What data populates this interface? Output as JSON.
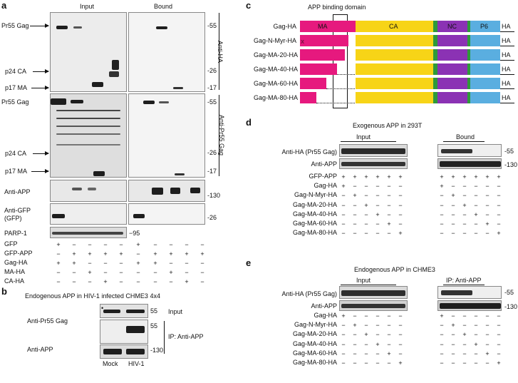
{
  "panels": {
    "a": "a",
    "b": "b",
    "c": "c",
    "d": "d",
    "e": "e"
  },
  "a": {
    "input": "Input",
    "bound": "Bound",
    "side_ha": "Anti-HA",
    "side_pr55": "Anti-Pr55 Gag",
    "arrows": [
      "Pr55 Gag",
      "p24 CA",
      "p17 MA",
      "Pr55 Gag",
      "p24 CA",
      "p17 MA"
    ],
    "mw": [
      "-55",
      "-26",
      "-17",
      "-55",
      "-26",
      "-17",
      "-130",
      "-26",
      "−95"
    ],
    "blot_labels": [
      "Anti-APP",
      "Anti-GFP\n(GFP)",
      "PARP-1"
    ],
    "anti_gfp_1": "Anti-GFP",
    "anti_gfp_2": "(GFP)",
    "rows": [
      {
        "label": "GFP",
        "signs": [
          "+",
          "−",
          "−",
          "−",
          "−",
          "+",
          "−",
          "−",
          "−",
          "−"
        ]
      },
      {
        "label": "GFP-APP",
        "signs": [
          "−",
          "+",
          "+",
          "+",
          "+",
          "−",
          "+",
          "+",
          "+",
          "+"
        ]
      },
      {
        "label": "Gag-HA",
        "signs": [
          "+",
          "+",
          "−",
          "−",
          "−",
          "+",
          "+",
          "−",
          "−",
          "−"
        ]
      },
      {
        "label": "MA-HA",
        "signs": [
          "−",
          "−",
          "+",
          "−",
          "−",
          "−",
          "−",
          "+",
          "−",
          "−"
        ]
      },
      {
        "label": "CA-HA",
        "signs": [
          "−",
          "−",
          "−",
          "+",
          "−",
          "−",
          "−",
          "−",
          "+",
          "−"
        ]
      }
    ]
  },
  "b": {
    "title": "Endogenous APP in HIV-1 infected CHME3 4x4",
    "anti_pr55": "Anti-Pr55 Gag",
    "anti_app": "Anti-APP",
    "input": "Input",
    "ip": "IP: Anti-APP",
    "mw": [
      "55",
      "55",
      "-130"
    ],
    "lanes": [
      "Mock",
      "HIV-1"
    ]
  },
  "c": {
    "domain_label": "APP binding domain",
    "rows": [
      "Gag-HA",
      "Gag-N-Myr-HA",
      "Gag-MA-20-HA",
      "Gag-MA-40-HA",
      "Gag-MA-60-HA",
      "Gag-MA-80-HA"
    ],
    "segments": {
      "ma": "MA",
      "ca": "CA",
      "nc": "NC",
      "p6": "P6",
      "ha": "HA"
    },
    "x_mark": "x",
    "colors": {
      "ma": "#e6197e",
      "ca": "#f7d417",
      "green": "#2e9a3a",
      "nc": "#8b32b4",
      "p6": "#5aaee0"
    }
  },
  "d": {
    "title": "Exogenous APP in 293T",
    "input": "Input",
    "bound": "Bound",
    "blots": [
      "Anti-HA (Pr55 Gag)",
      "Anti-APP"
    ],
    "mw": [
      "-55",
      "-130"
    ],
    "rows": [
      {
        "label": "GFP-APP",
        "signs": [
          "+",
          "+",
          "+",
          "+",
          "+",
          "+",
          "+",
          "+",
          "+",
          "+",
          "+",
          "+"
        ]
      },
      {
        "label": "Gag-HA",
        "signs": [
          "+",
          "−",
          "−",
          "−",
          "−",
          "−",
          "+",
          "−",
          "−",
          "−",
          "−",
          "−"
        ]
      },
      {
        "label": "Gag-N-Myr-HA",
        "signs": [
          "−",
          "+",
          "−",
          "−",
          "−",
          "−",
          "−",
          "+",
          "−",
          "−",
          "−",
          "−"
        ]
      },
      {
        "label": "Gag-MA-20-HA",
        "signs": [
          "−",
          "−",
          "+",
          "−",
          "−",
          "−",
          "−",
          "−",
          "+",
          "−",
          "−",
          "−"
        ]
      },
      {
        "label": "Gag-MA-40-HA",
        "signs": [
          "−",
          "−",
          "−",
          "+",
          "−",
          "−",
          "−",
          "−",
          "−",
          "+",
          "−",
          "−"
        ]
      },
      {
        "label": "Gag-MA-60-HA",
        "signs": [
          "−",
          "−",
          "−",
          "−",
          "+",
          "−",
          "−",
          "−",
          "−",
          "−",
          "+",
          "−"
        ]
      },
      {
        "label": "Gag-MA-80-HA",
        "signs": [
          "−",
          "−",
          "−",
          "−",
          "−",
          "+",
          "−",
          "−",
          "−",
          "−",
          "−",
          "+"
        ]
      }
    ]
  },
  "e": {
    "title": "Endogenous APP in CHME3",
    "input": "Input",
    "ip": "IP: Anti-APP",
    "blots": [
      "Anti-HA (Pr55 Gag)",
      "Anti-APP"
    ],
    "mw": [
      "-55",
      "-130"
    ],
    "rows": [
      {
        "label": "Gag-HA",
        "signs": [
          "+",
          "−",
          "−",
          "−",
          "−",
          "−",
          "+",
          "−",
          "−",
          "−",
          "−",
          "−"
        ]
      },
      {
        "label": "Gag-N-Myr-HA",
        "signs": [
          "−",
          "+",
          "−",
          "−",
          "−",
          "−",
          "−",
          "+",
          "−",
          "−",
          "−",
          "−"
        ]
      },
      {
        "label": "Gag-MA-20-HA",
        "signs": [
          "−",
          "−",
          "+",
          "−",
          "−",
          "−",
          "−",
          "−",
          "+",
          "−",
          "−",
          "−"
        ]
      },
      {
        "label": "Gag-MA-40-HA",
        "signs": [
          "−",
          "−",
          "−",
          "+",
          "−",
          "−",
          "−",
          "−",
          "−",
          "+",
          "−",
          "−"
        ]
      },
      {
        "label": "Gag-MA-60-HA",
        "signs": [
          "−",
          "−",
          "−",
          "−",
          "+",
          "−",
          "−",
          "−",
          "−",
          "−",
          "+",
          "−"
        ]
      },
      {
        "label": "Gag-MA-80-HA",
        "signs": [
          "−",
          "−",
          "−",
          "−",
          "−",
          "+",
          "−",
          "−",
          "−",
          "−",
          "−",
          "+"
        ]
      }
    ]
  }
}
